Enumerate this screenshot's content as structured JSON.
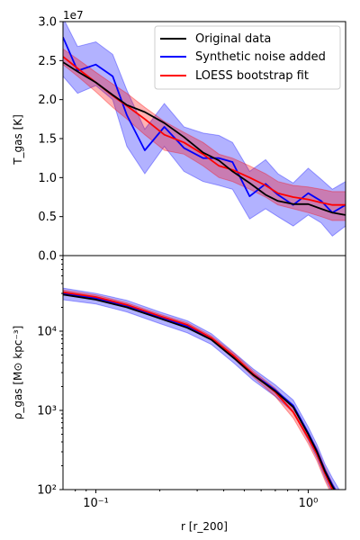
{
  "colors": {
    "original": "#000000",
    "synthetic": "#0000ff",
    "loess": "#ff0000",
    "synthetic_band": "#0000ff",
    "loess_band": "#ff0000"
  },
  "legend": {
    "placement": "upper-right",
    "entries": [
      "Original data",
      "Synthetic noise added",
      "LOESS bootstrap fit"
    ]
  },
  "chart_data": [
    {
      "type": "line",
      "title": "",
      "xscale": "log",
      "xlim": [
        0.07,
        1.5
      ],
      "ylim": [
        0,
        3.0
      ],
      "ylabel": "T_gas [K]",
      "offset_text": "1e7",
      "yticks": [
        "0.0",
        "0.5",
        "1.0",
        "1.5",
        "2.0",
        "2.5",
        "3.0"
      ],
      "x": [
        0.07,
        0.082,
        0.1,
        0.12,
        0.14,
        0.17,
        0.21,
        0.26,
        0.32,
        0.38,
        0.44,
        0.53,
        0.63,
        0.72,
        0.85,
        1.0,
        1.15,
        1.3,
        1.5
      ],
      "series": [
        {
          "name": "Original data",
          "values": [
            2.48,
            2.36,
            2.22,
            2.06,
            1.93,
            1.84,
            1.7,
            1.52,
            1.32,
            1.22,
            1.08,
            0.93,
            0.78,
            0.7,
            0.66,
            0.66,
            0.6,
            0.55,
            0.52
          ]
        },
        {
          "name": "Synthetic noise added",
          "values": [
            2.8,
            2.37,
            2.45,
            2.3,
            1.8,
            1.35,
            1.65,
            1.38,
            1.25,
            1.25,
            1.2,
            0.76,
            0.92,
            0.78,
            0.65,
            0.8,
            0.7,
            0.55,
            0.65
          ],
          "band_low": [
            2.3,
            2.08,
            2.18,
            2.0,
            1.4,
            1.05,
            1.4,
            1.08,
            0.95,
            0.9,
            0.85,
            0.47,
            0.6,
            0.5,
            0.38,
            0.52,
            0.42,
            0.25,
            0.38
          ],
          "band_high": [
            3.05,
            2.68,
            2.74,
            2.58,
            2.12,
            1.62,
            1.95,
            1.65,
            1.57,
            1.54,
            1.45,
            1.08,
            1.23,
            1.05,
            0.93,
            1.12,
            0.98,
            0.85,
            0.95
          ]
        },
        {
          "name": "LOESS bootstrap fit",
          "values": [
            2.55,
            2.4,
            2.22,
            2.05,
            1.92,
            1.75,
            1.55,
            1.45,
            1.3,
            1.15,
            1.1,
            1.0,
            0.9,
            0.8,
            0.75,
            0.72,
            0.68,
            0.65,
            0.65
          ],
          "band_low": [
            2.45,
            2.3,
            2.1,
            1.9,
            1.75,
            1.55,
            1.35,
            1.3,
            1.15,
            1.0,
            0.95,
            0.85,
            0.75,
            0.65,
            0.6,
            0.55,
            0.5,
            0.45,
            0.45
          ],
          "band_high": [
            2.65,
            2.52,
            2.35,
            2.2,
            2.08,
            1.9,
            1.72,
            1.58,
            1.45,
            1.3,
            1.25,
            1.15,
            1.05,
            0.95,
            0.9,
            0.88,
            0.85,
            0.82,
            0.82
          ]
        }
      ]
    },
    {
      "type": "line",
      "title": "",
      "xscale": "log",
      "yscale": "log",
      "xlim": [
        0.07,
        1.5
      ],
      "ylim": [
        100,
        90000
      ],
      "xlabel": "r [r_200]",
      "ylabel": "ρ_gas [M⊙ kpc⁻³]",
      "xticks": [
        "10⁻¹",
        "10⁰"
      ],
      "yticks": [
        "10²",
        "10³",
        "10⁴"
      ],
      "x": [
        0.07,
        0.1,
        0.14,
        0.2,
        0.27,
        0.35,
        0.45,
        0.55,
        0.7,
        0.85,
        1.0,
        1.1,
        1.2,
        1.3,
        1.4
      ],
      "series": [
        {
          "name": "Original data",
          "values": [
            29000,
            25000,
            20000,
            14500,
            11000,
            7800,
            4500,
            2800,
            1750,
            1100,
            500,
            300,
            170,
            110,
            80
          ]
        },
        {
          "name": "Synthetic noise added",
          "values": [
            30000,
            26000,
            21000,
            15000,
            11500,
            8000,
            4600,
            2900,
            1800,
            1150,
            520,
            310,
            175,
            115,
            82
          ],
          "band_low": [
            25000,
            22000,
            17500,
            12500,
            9500,
            6800,
            3900,
            2400,
            1500,
            950,
            420,
            250,
            140,
            90,
            65
          ],
          "band_high": [
            35000,
            30000,
            24500,
            17500,
            13500,
            9300,
            5300,
            3350,
            2100,
            1350,
            620,
            370,
            210,
            140,
            100
          ]
        },
        {
          "name": "LOESS bootstrap fit",
          "values": [
            31000,
            27000,
            21500,
            15500,
            12000,
            8200,
            4800,
            2900,
            1700,
            950,
            450,
            280,
            160,
            100,
            70
          ],
          "band_low": [
            29500,
            25500,
            20500,
            14700,
            11300,
            7700,
            4400,
            2650,
            1500,
            800,
            380,
            230,
            130,
            82,
            58
          ],
          "band_high": [
            33000,
            28700,
            22800,
            16400,
            12700,
            8700,
            5200,
            3150,
            1900,
            1100,
            520,
            330,
            190,
            120,
            85
          ]
        }
      ]
    }
  ]
}
